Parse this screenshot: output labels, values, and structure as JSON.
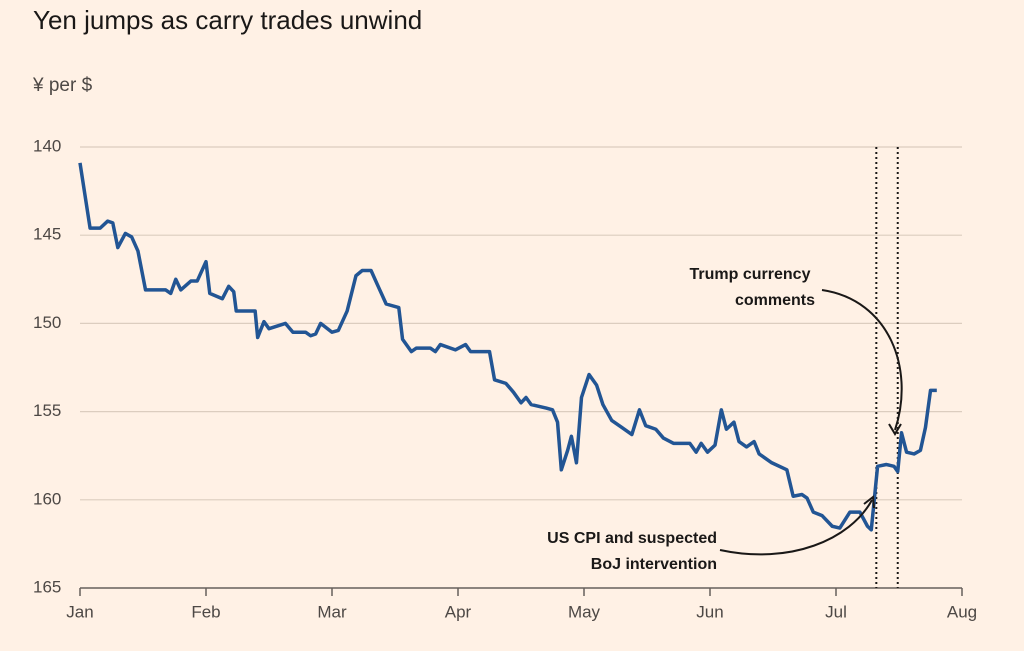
{
  "chart_data": {
    "type": "line",
    "title": "Yen jumps as carry trades unwind",
    "subtitle": "¥ per $",
    "x": [
      0,
      0.08,
      0.16,
      0.22,
      0.26,
      0.3,
      0.36,
      0.41,
      0.46,
      0.52,
      0.68,
      0.72,
      0.76,
      0.8,
      0.88,
      0.93,
      1.0,
      1.03,
      1.13,
      1.18,
      1.22,
      1.24,
      1.39,
      1.41,
      1.46,
      1.5,
      1.63,
      1.69,
      1.79,
      1.83,
      1.87,
      1.91,
      2.0,
      2.05,
      2.12,
      2.19,
      2.24,
      2.31,
      2.36,
      2.43,
      2.53,
      2.56,
      2.63,
      2.67,
      2.78,
      2.82,
      2.86,
      2.98,
      3.06,
      3.1,
      3.25,
      3.29,
      3.38,
      3.44,
      3.5,
      3.54,
      3.58,
      3.7,
      3.75,
      3.79,
      3.82,
      3.87,
      3.9,
      3.94,
      3.98,
      4.04,
      4.1,
      4.15,
      4.22,
      4.3,
      4.38,
      4.44,
      4.49,
      4.57,
      4.63,
      4.71,
      4.84,
      4.89,
      4.93,
      4.98,
      5.04,
      5.09,
      5.13,
      5.19,
      5.23,
      5.29,
      5.35,
      5.39,
      5.49,
      5.61,
      5.66,
      5.73,
      5.77,
      5.82,
      5.89,
      5.97,
      6.03,
      6.11,
      6.19,
      6.25,
      6.28,
      6.33,
      6.4,
      6.46,
      6.49,
      6.52,
      6.56,
      6.62,
      6.67,
      6.71,
      6.75,
      6.8
    ],
    "series": [
      {
        "name": "¥ per $",
        "color": "#225594",
        "values": [
          140.9,
          144.6,
          144.6,
          144.2,
          144.3,
          145.7,
          144.9,
          145.1,
          145.9,
          148.1,
          148.1,
          148.3,
          147.5,
          148.1,
          147.6,
          147.6,
          146.5,
          148.3,
          148.6,
          147.9,
          148.2,
          149.3,
          149.3,
          150.8,
          149.9,
          150.3,
          150.0,
          150.5,
          150.5,
          150.7,
          150.6,
          150.0,
          150.5,
          150.4,
          149.3,
          147.3,
          147.0,
          147.0,
          147.8,
          148.9,
          149.1,
          150.9,
          151.6,
          151.4,
          151.4,
          151.6,
          151.2,
          151.5,
          151.2,
          151.6,
          151.6,
          153.2,
          153.4,
          153.9,
          154.5,
          154.2,
          154.6,
          154.8,
          154.9,
          155.6,
          158.3,
          157.2,
          156.4,
          157.9,
          154.2,
          152.9,
          153.5,
          154.6,
          155.5,
          155.9,
          156.3,
          154.9,
          155.8,
          156.0,
          156.5,
          156.8,
          156.8,
          157.3,
          156.8,
          157.3,
          156.9,
          154.9,
          156.0,
          155.6,
          156.7,
          157.0,
          156.7,
          157.4,
          157.9,
          158.3,
          159.8,
          159.7,
          159.9,
          160.7,
          160.9,
          161.5,
          161.6,
          160.7,
          160.7,
          161.5,
          161.7,
          158.1,
          158.0,
          158.1,
          158.4,
          156.2,
          157.3,
          157.4,
          157.2,
          155.9,
          153.8,
          153.8
        ]
      }
    ],
    "xlim": [
      0,
      7
    ],
    "xticks": [
      {
        "value": 0,
        "label": "Jan"
      },
      {
        "value": 1,
        "label": "Feb"
      },
      {
        "value": 2,
        "label": "Mar"
      },
      {
        "value": 3,
        "label": "Apr"
      },
      {
        "value": 4,
        "label": "May"
      },
      {
        "value": 5,
        "label": "Jun"
      },
      {
        "value": 6,
        "label": "Jul"
      },
      {
        "value": 7,
        "label": "Aug"
      }
    ],
    "ylim": [
      140,
      165
    ],
    "y_inverted": true,
    "yticks": [
      140,
      145,
      150,
      155,
      160,
      165
    ],
    "grid": true,
    "vlines": [
      6.32,
      6.49
    ],
    "annotations": [
      {
        "lines": [
          "Trump currency",
          "comments"
        ]
      },
      {
        "lines": [
          "US CPI and suspected",
          "BoJ intervention"
        ]
      }
    ]
  }
}
